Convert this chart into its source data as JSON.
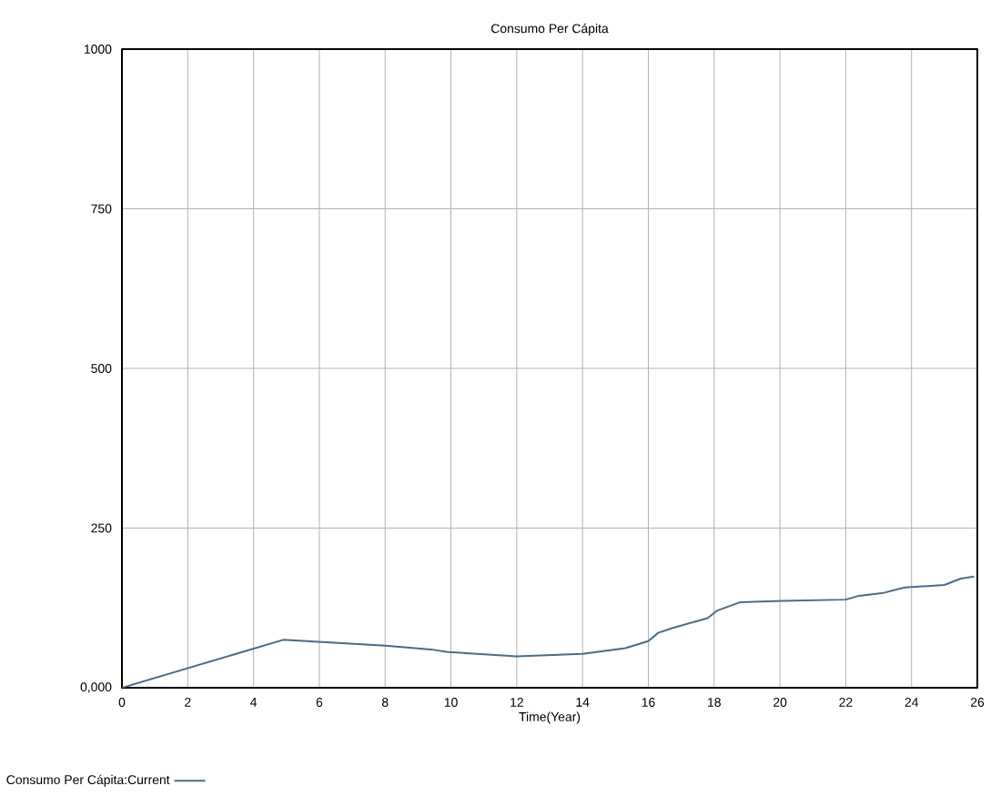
{
  "chart_data": {
    "type": "line",
    "title": "Consumo Per Cápita",
    "xlabel": "Time(Year)",
    "xlim": [
      0,
      26
    ],
    "ylim": [
      0,
      1000
    ],
    "xticks": [
      0,
      2,
      4,
      6,
      8,
      10,
      12,
      14,
      16,
      18,
      20,
      22,
      24,
      26
    ],
    "yticks": [
      {
        "value": 0,
        "label": "0,000"
      },
      250,
      500,
      750,
      1000
    ],
    "grid": true,
    "legend": "bottom left",
    "marker": "none",
    "line_style": "solid",
    "series": [
      {
        "name": "Consumo Per Cápita:Current",
        "color": "#4a6b8a",
        "x": [
          0,
          4.9,
          8,
          9.4,
          9.9,
          12,
          14,
          15.3,
          16,
          16.3,
          16.7,
          17.8,
          18.1,
          18.8,
          20.1,
          22,
          22.4,
          23.1,
          23.8,
          25,
          25.5,
          25.9
        ],
        "values": [
          0,
          75,
          66,
          60,
          56,
          49,
          53,
          62,
          73,
          86,
          93,
          109,
          121,
          134,
          136,
          138,
          144,
          148,
          157,
          161,
          171,
          174
        ]
      }
    ]
  }
}
